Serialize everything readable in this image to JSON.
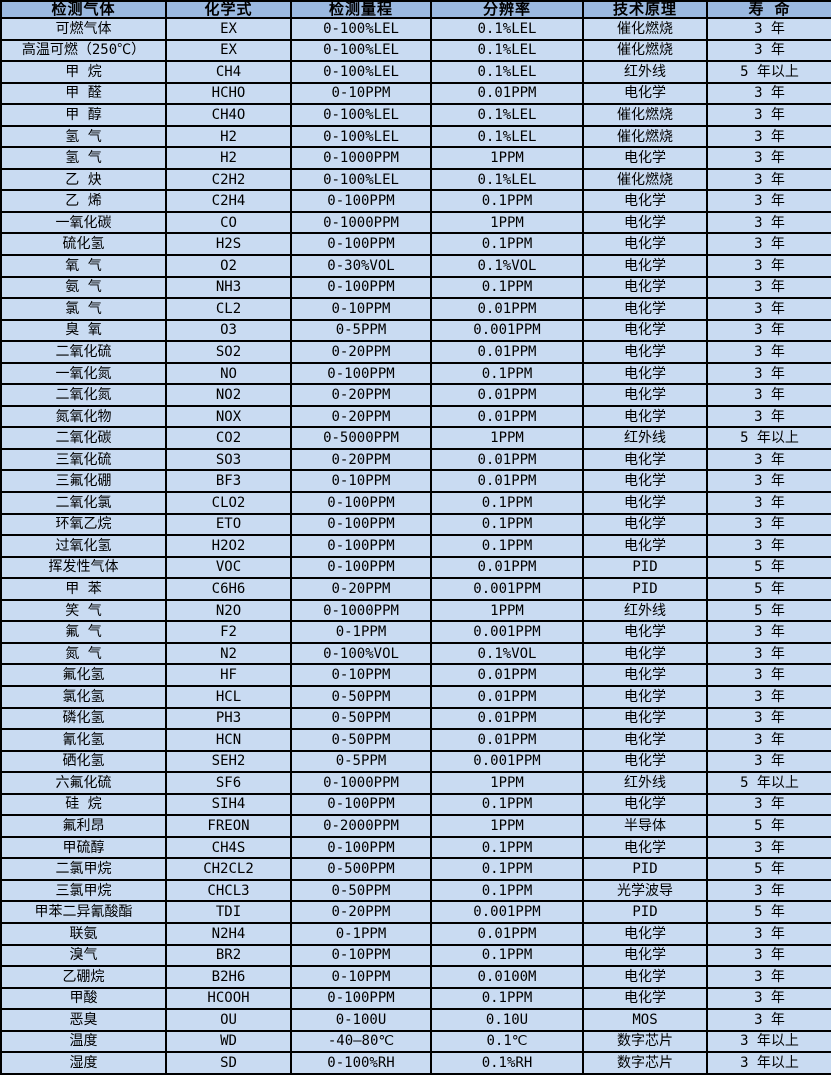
{
  "colors": {
    "header_bg": "#9BB9E0",
    "row_bg": "#C9DBF2",
    "border": "#000000",
    "text": "#000000"
  },
  "table": {
    "column_keys": [
      "gas",
      "formula",
      "range",
      "resolution",
      "principle",
      "lifespan"
    ],
    "headers": [
      "检测气体",
      "化学式",
      "检测量程",
      "分辨率",
      "技术原理",
      "寿 命"
    ],
    "rows": [
      [
        "可燃气体",
        "EX",
        "0-100%LEL",
        "0.1%LEL",
        "催化燃烧",
        "3 年"
      ],
      [
        "高温可燃（250℃）",
        "EX",
        "0-100%LEL",
        "0.1%LEL",
        "催化燃烧",
        "3 年"
      ],
      [
        "甲 烷",
        "CH4",
        "0-100%LEL",
        "0.1%LEL",
        "红外线",
        "5 年以上"
      ],
      [
        "甲 醛",
        "HCHO",
        "0-10PPM",
        "0.01PPM",
        "电化学",
        "3 年"
      ],
      [
        "甲 醇",
        "CH4O",
        "0-100%LEL",
        "0.1%LEL",
        "催化燃烧",
        "3 年"
      ],
      [
        "氢 气",
        "H2",
        "0-100%LEL",
        "0.1%LEL",
        "催化燃烧",
        "3 年"
      ],
      [
        "氢 气",
        "H2",
        "0-1000PPM",
        "1PPM",
        "电化学",
        "3 年"
      ],
      [
        "乙 炔",
        "C2H2",
        "0-100%LEL",
        "0.1%LEL",
        "催化燃烧",
        "3 年"
      ],
      [
        "乙 烯",
        "C2H4",
        "0-100PPM",
        "0.1PPM",
        "电化学",
        "3 年"
      ],
      [
        "一氧化碳",
        "CO",
        "0-1000PPM",
        "1PPM",
        "电化学",
        "3 年"
      ],
      [
        "硫化氢",
        "H2S",
        "0-100PPM",
        "0.1PPM",
        "电化学",
        "3 年"
      ],
      [
        "氧 气",
        "O2",
        "0-30%VOL",
        "0.1%VOL",
        "电化学",
        "3 年"
      ],
      [
        "氨 气",
        "NH3",
        "0-100PPM",
        "0.1PPM",
        "电化学",
        "3 年"
      ],
      [
        "氯 气",
        "CL2",
        "0-10PPM",
        "0.01PPM",
        "电化学",
        "3 年"
      ],
      [
        "臭 氧",
        "O3",
        "0-5PPM",
        "0.001PPM",
        "电化学",
        "3 年"
      ],
      [
        "二氧化硫",
        "SO2",
        "0-20PPM",
        "0.01PPM",
        "电化学",
        "3 年"
      ],
      [
        "一氧化氮",
        "NO",
        "0-100PPM",
        "0.1PPM",
        "电化学",
        "3 年"
      ],
      [
        "二氧化氮",
        "NO2",
        "0-20PPM",
        "0.01PPM",
        "电化学",
        "3 年"
      ],
      [
        "氮氧化物",
        "NOX",
        "0-20PPM",
        "0.01PPM",
        "电化学",
        "3 年"
      ],
      [
        "二氧化碳",
        "CO2",
        "0-5000PPM",
        "1PPM",
        "红外线",
        "5 年以上"
      ],
      [
        "三氧化硫",
        "SO3",
        "0-20PPM",
        "0.01PPM",
        "电化学",
        "3 年"
      ],
      [
        "三氟化硼",
        "BF3",
        "0-10PPM",
        "0.01PPM",
        "电化学",
        "3 年"
      ],
      [
        "二氧化氯",
        "CLO2",
        "0-100PPM",
        "0.1PPM",
        "电化学",
        "3 年"
      ],
      [
        "环氧乙烷",
        "ETO",
        "0-100PPM",
        "0.1PPM",
        "电化学",
        "3 年"
      ],
      [
        "过氧化氢",
        "H2O2",
        "0-100PPM",
        "0.1PPM",
        "电化学",
        "3 年"
      ],
      [
        "挥发性气体",
        "VOC",
        "0-100PPM",
        "0.01PPM",
        "PID",
        "5 年"
      ],
      [
        "甲 苯",
        "C6H6",
        "0-20PPM",
        "0.001PPM",
        "PID",
        "5 年"
      ],
      [
        "笑 气",
        "N2O",
        "0-1000PPM",
        "1PPM",
        "红外线",
        "5 年"
      ],
      [
        "氟 气",
        "F2",
        "0-1PPM",
        "0.001PPM",
        "电化学",
        "3 年"
      ],
      [
        "氮 气",
        "N2",
        "0-100%VOL",
        "0.1%VOL",
        "电化学",
        "3 年"
      ],
      [
        "氟化氢",
        "HF",
        "0-10PPM",
        "0.01PPM",
        "电化学",
        "3 年"
      ],
      [
        "氯化氢",
        "HCL",
        "0-50PPM",
        "0.01PPM",
        "电化学",
        "3 年"
      ],
      [
        "磷化氢",
        "PH3",
        "0-50PPM",
        "0.01PPM",
        "电化学",
        "3 年"
      ],
      [
        "氰化氢",
        "HCN",
        "0-50PPM",
        "0.01PPM",
        "电化学",
        "3 年"
      ],
      [
        "硒化氢",
        "SEH2",
        "0-5PPM",
        "0.001PPM",
        "电化学",
        "3 年"
      ],
      [
        "六氟化硫",
        "SF6",
        "0-1000PPM",
        "1PPM",
        "红外线",
        "5 年以上"
      ],
      [
        "硅 烷",
        "SIH4",
        "0-100PPM",
        "0.1PPM",
        "电化学",
        "3 年"
      ],
      [
        "氟利昂",
        "FREON",
        "0-2000PPM",
        "1PPM",
        "半导体",
        "5 年"
      ],
      [
        "甲硫醇",
        "CH4S",
        "0-100PPM",
        "0.1PPM",
        "电化学",
        "3 年"
      ],
      [
        "二氯甲烷",
        "CH2CL2",
        "0-500PPM",
        "0.1PPM",
        "PID",
        "5 年"
      ],
      [
        "三氯甲烷",
        "CHCL3",
        "0-50PPM",
        "0.1PPM",
        "光学波导",
        "3 年"
      ],
      [
        "甲苯二异氰酸酯",
        "TDI",
        "0-20PPM",
        "0.001PPM",
        "PID",
        "5 年"
      ],
      [
        "联氨",
        "N2H4",
        "0-1PPM",
        "0.01PPM",
        "电化学",
        "3 年"
      ],
      [
        "溴气",
        "BR2",
        "0-10PPM",
        "0.1PPM",
        "电化学",
        "3 年"
      ],
      [
        "乙硼烷",
        "B2H6",
        "0-10PPM",
        "0.0100M",
        "电化学",
        "3 年"
      ],
      [
        "甲酸",
        "HCOOH",
        "0-100PPM",
        "0.1PPM",
        "电化学",
        "3 年"
      ],
      [
        "恶臭",
        "OU",
        "0-100U",
        "0.10U",
        "MOS",
        "3 年"
      ],
      [
        "温度",
        "WD",
        "-40—80℃",
        "0.1℃",
        "数字芯片",
        "3 年以上"
      ],
      [
        "湿度",
        "SD",
        "0-100%RH",
        "0.1%RH",
        "数字芯片",
        "3 年以上"
      ]
    ]
  }
}
